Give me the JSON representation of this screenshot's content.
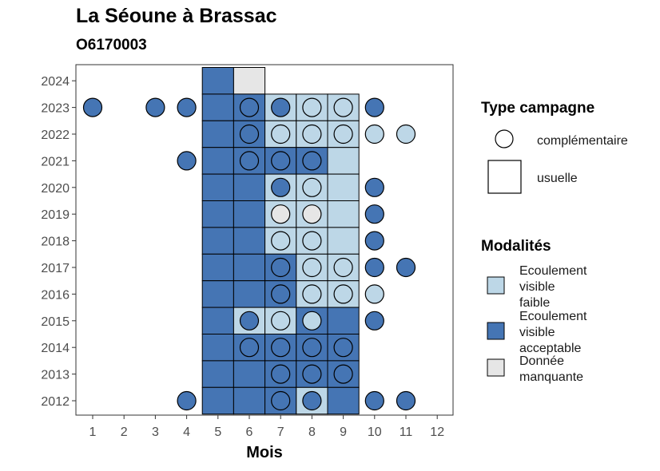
{
  "chart_data": {
    "type": "heatmap",
    "title": "La Séoune à Brassac",
    "subtitle": "O6170003",
    "xlabel": "Mois",
    "ylabel": "",
    "x_ticks": [
      "1",
      "2",
      "3",
      "4",
      "5",
      "6",
      "7",
      "8",
      "9",
      "10",
      "11",
      "12"
    ],
    "y_ticks": [
      "2012",
      "2013",
      "2014",
      "2015",
      "2016",
      "2017",
      "2018",
      "2019",
      "2020",
      "2021",
      "2022",
      "2023",
      "2024"
    ],
    "colors": {
      "faible": "#bdd7e7",
      "acceptable": "#4575b4",
      "manquante": "#e6e6e6"
    },
    "legend_shape": {
      "title": "Type campagne",
      "items": [
        {
          "shape": "circle",
          "label": "complémentaire"
        },
        {
          "shape": "square",
          "label": "usuelle"
        }
      ]
    },
    "legend_fill": {
      "title": "Modalités",
      "items": [
        {
          "key": "faible",
          "lines": [
            "Ecoulement",
            "visible",
            "faible"
          ]
        },
        {
          "key": "acceptable",
          "lines": [
            "Ecoulement",
            "visible",
            "acceptable"
          ]
        },
        {
          "key": "manquante",
          "lines": [
            "Donnée",
            "manquante"
          ]
        }
      ]
    },
    "squares": [
      {
        "year": 2024,
        "month": 5,
        "m": "acceptable"
      },
      {
        "year": 2024,
        "month": 6,
        "m": "manquante"
      },
      {
        "year": 2023,
        "month": 5,
        "m": "acceptable"
      },
      {
        "year": 2023,
        "month": 6,
        "m": "acceptable"
      },
      {
        "year": 2023,
        "month": 7,
        "m": "faible"
      },
      {
        "year": 2023,
        "month": 8,
        "m": "faible"
      },
      {
        "year": 2023,
        "month": 9,
        "m": "faible"
      },
      {
        "year": 2022,
        "month": 5,
        "m": "acceptable"
      },
      {
        "year": 2022,
        "month": 6,
        "m": "acceptable"
      },
      {
        "year": 2022,
        "month": 7,
        "m": "faible"
      },
      {
        "year": 2022,
        "month": 8,
        "m": "faible"
      },
      {
        "year": 2022,
        "month": 9,
        "m": "faible"
      },
      {
        "year": 2021,
        "month": 5,
        "m": "acceptable"
      },
      {
        "year": 2021,
        "month": 6,
        "m": "acceptable"
      },
      {
        "year": 2021,
        "month": 7,
        "m": "acceptable"
      },
      {
        "year": 2021,
        "month": 8,
        "m": "acceptable"
      },
      {
        "year": 2021,
        "month": 9,
        "m": "faible"
      },
      {
        "year": 2020,
        "month": 5,
        "m": "acceptable"
      },
      {
        "year": 2020,
        "month": 6,
        "m": "acceptable"
      },
      {
        "year": 2020,
        "month": 7,
        "m": "faible"
      },
      {
        "year": 2020,
        "month": 8,
        "m": "faible"
      },
      {
        "year": 2020,
        "month": 9,
        "m": "faible"
      },
      {
        "year": 2019,
        "month": 5,
        "m": "acceptable"
      },
      {
        "year": 2019,
        "month": 6,
        "m": "acceptable"
      },
      {
        "year": 2019,
        "month": 7,
        "m": "faible"
      },
      {
        "year": 2019,
        "month": 8,
        "m": "faible"
      },
      {
        "year": 2019,
        "month": 9,
        "m": "faible"
      },
      {
        "year": 2018,
        "month": 5,
        "m": "acceptable"
      },
      {
        "year": 2018,
        "month": 6,
        "m": "acceptable"
      },
      {
        "year": 2018,
        "month": 7,
        "m": "faible"
      },
      {
        "year": 2018,
        "month": 8,
        "m": "faible"
      },
      {
        "year": 2018,
        "month": 9,
        "m": "faible"
      },
      {
        "year": 2017,
        "month": 5,
        "m": "acceptable"
      },
      {
        "year": 2017,
        "month": 6,
        "m": "acceptable"
      },
      {
        "year": 2017,
        "month": 7,
        "m": "acceptable"
      },
      {
        "year": 2017,
        "month": 8,
        "m": "faible"
      },
      {
        "year": 2017,
        "month": 9,
        "m": "faible"
      },
      {
        "year": 2016,
        "month": 5,
        "m": "acceptable"
      },
      {
        "year": 2016,
        "month": 6,
        "m": "acceptable"
      },
      {
        "year": 2016,
        "month": 7,
        "m": "acceptable"
      },
      {
        "year": 2016,
        "month": 8,
        "m": "faible"
      },
      {
        "year": 2016,
        "month": 9,
        "m": "faible"
      },
      {
        "year": 2015,
        "month": 5,
        "m": "acceptable"
      },
      {
        "year": 2015,
        "month": 6,
        "m": "faible"
      },
      {
        "year": 2015,
        "month": 7,
        "m": "faible"
      },
      {
        "year": 2015,
        "month": 8,
        "m": "acceptable"
      },
      {
        "year": 2015,
        "month": 9,
        "m": "acceptable"
      },
      {
        "year": 2014,
        "month": 5,
        "m": "acceptable"
      },
      {
        "year": 2014,
        "month": 6,
        "m": "acceptable"
      },
      {
        "year": 2014,
        "month": 7,
        "m": "acceptable"
      },
      {
        "year": 2014,
        "month": 8,
        "m": "acceptable"
      },
      {
        "year": 2014,
        "month": 9,
        "m": "acceptable"
      },
      {
        "year": 2013,
        "month": 5,
        "m": "acceptable"
      },
      {
        "year": 2013,
        "month": 6,
        "m": "acceptable"
      },
      {
        "year": 2013,
        "month": 7,
        "m": "acceptable"
      },
      {
        "year": 2013,
        "month": 8,
        "m": "acceptable"
      },
      {
        "year": 2013,
        "month": 9,
        "m": "acceptable"
      },
      {
        "year": 2012,
        "month": 5,
        "m": "acceptable"
      },
      {
        "year": 2012,
        "month": 6,
        "m": "acceptable"
      },
      {
        "year": 2012,
        "month": 7,
        "m": "acceptable"
      },
      {
        "year": 2012,
        "month": 8,
        "m": "faible"
      },
      {
        "year": 2012,
        "month": 9,
        "m": "acceptable"
      }
    ],
    "circles": [
      {
        "year": 2023,
        "month": 1,
        "m": "acceptable"
      },
      {
        "year": 2023,
        "month": 3,
        "m": "acceptable"
      },
      {
        "year": 2023,
        "month": 4,
        "m": "acceptable"
      },
      {
        "year": 2023,
        "month": 6,
        "m": "acceptable"
      },
      {
        "year": 2023,
        "month": 7,
        "m": "acceptable"
      },
      {
        "year": 2023,
        "month": 8,
        "m": "faible"
      },
      {
        "year": 2023,
        "month": 9,
        "m": "faible"
      },
      {
        "year": 2023,
        "month": 10,
        "m": "acceptable"
      },
      {
        "year": 2022,
        "month": 6,
        "m": "acceptable"
      },
      {
        "year": 2022,
        "month": 7,
        "m": "faible"
      },
      {
        "year": 2022,
        "month": 8,
        "m": "faible"
      },
      {
        "year": 2022,
        "month": 9,
        "m": "faible"
      },
      {
        "year": 2022,
        "month": 10,
        "m": "faible"
      },
      {
        "year": 2022,
        "month": 11,
        "m": "faible"
      },
      {
        "year": 2021,
        "month": 4,
        "m": "acceptable"
      },
      {
        "year": 2021,
        "month": 6,
        "m": "acceptable"
      },
      {
        "year": 2021,
        "month": 7,
        "m": "acceptable"
      },
      {
        "year": 2021,
        "month": 8,
        "m": "acceptable"
      },
      {
        "year": 2020,
        "month": 7,
        "m": "acceptable"
      },
      {
        "year": 2020,
        "month": 8,
        "m": "faible"
      },
      {
        "year": 2020,
        "month": 10,
        "m": "acceptable"
      },
      {
        "year": 2019,
        "month": 7,
        "m": "manquante"
      },
      {
        "year": 2019,
        "month": 8,
        "m": "manquante"
      },
      {
        "year": 2019,
        "month": 10,
        "m": "acceptable"
      },
      {
        "year": 2018,
        "month": 7,
        "m": "faible"
      },
      {
        "year": 2018,
        "month": 8,
        "m": "faible"
      },
      {
        "year": 2018,
        "month": 10,
        "m": "acceptable"
      },
      {
        "year": 2017,
        "month": 7,
        "m": "acceptable"
      },
      {
        "year": 2017,
        "month": 8,
        "m": "faible"
      },
      {
        "year": 2017,
        "month": 9,
        "m": "faible"
      },
      {
        "year": 2017,
        "month": 10,
        "m": "acceptable"
      },
      {
        "year": 2017,
        "month": 11,
        "m": "acceptable"
      },
      {
        "year": 2016,
        "month": 7,
        "m": "acceptable"
      },
      {
        "year": 2016,
        "month": 8,
        "m": "faible"
      },
      {
        "year": 2016,
        "month": 9,
        "m": "faible"
      },
      {
        "year": 2016,
        "month": 10,
        "m": "faible"
      },
      {
        "year": 2015,
        "month": 6,
        "m": "acceptable"
      },
      {
        "year": 2015,
        "month": 7,
        "m": "faible"
      },
      {
        "year": 2015,
        "month": 8,
        "m": "faible"
      },
      {
        "year": 2015,
        "month": 10,
        "m": "acceptable"
      },
      {
        "year": 2014,
        "month": 6,
        "m": "acceptable"
      },
      {
        "year": 2014,
        "month": 7,
        "m": "acceptable"
      },
      {
        "year": 2014,
        "month": 8,
        "m": "acceptable"
      },
      {
        "year": 2014,
        "month": 9,
        "m": "acceptable"
      },
      {
        "year": 2013,
        "month": 7,
        "m": "acceptable"
      },
      {
        "year": 2013,
        "month": 8,
        "m": "acceptable"
      },
      {
        "year": 2013,
        "month": 9,
        "m": "acceptable"
      },
      {
        "year": 2012,
        "month": 4,
        "m": "acceptable"
      },
      {
        "year": 2012,
        "month": 7,
        "m": "acceptable"
      },
      {
        "year": 2012,
        "month": 8,
        "m": "acceptable"
      },
      {
        "year": 2012,
        "month": 10,
        "m": "acceptable"
      },
      {
        "year": 2012,
        "month": 11,
        "m": "acceptable"
      }
    ]
  }
}
